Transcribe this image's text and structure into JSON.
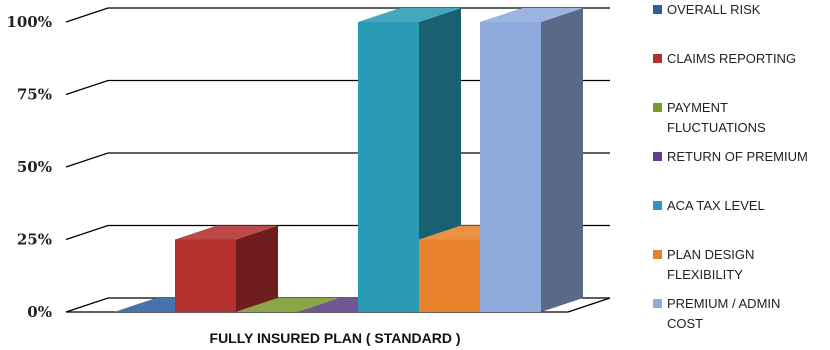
{
  "chart_data": {
    "type": "bar",
    "style": "3d-clustered-column",
    "categories": [
      "FULLY INSURED PLAN ( STANDARD )"
    ],
    "ylim": [
      0,
      100
    ],
    "yticks": [
      "0%",
      "25%",
      "50%",
      "75%",
      "100%"
    ],
    "grid": true,
    "legend_position": "right",
    "series": [
      {
        "name": "OVERALL RISK",
        "values": [
          0
        ],
        "color": "#2E5F9E"
      },
      {
        "name": "CLAIMS REPORTING",
        "values": [
          25
        ],
        "color": "#B3302E"
      },
      {
        "name": "PAYMENT FLUCTUATIONS",
        "values": [
          0
        ],
        "color": "#7A9A2E"
      },
      {
        "name": "RETURN OF PREMIUM",
        "values": [
          0
        ],
        "color": "#5E3F88"
      },
      {
        "name": "ACA TAX LEVEL",
        "values": [
          100
        ],
        "color": "#2A9BB5"
      },
      {
        "name": "PLAN DESIGN FLEXIBILITY",
        "values": [
          25
        ],
        "color": "#E8822A"
      },
      {
        "name": "PREMIUM / ADMIN COST",
        "values": [
          100
        ],
        "color": "#8FAADC"
      }
    ]
  }
}
